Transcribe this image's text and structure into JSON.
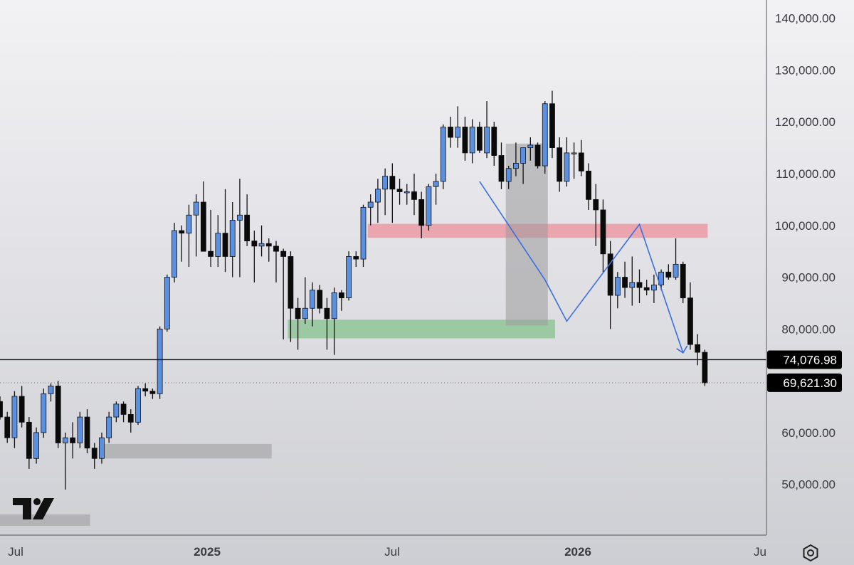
{
  "chart_data": {
    "type": "candlestick",
    "title": "",
    "y_tick_labels": [
      "140,000.00",
      "130,000.00",
      "120,000.00",
      "110,000.00",
      "100,000.00",
      "90,000.00",
      "80,000.00",
      "60,000.00",
      "50,000.00"
    ],
    "y_ticks": [
      140000,
      130000,
      120000,
      110000,
      100000,
      90000,
      80000,
      60000,
      50000
    ],
    "ylim": [
      42000,
      144000
    ],
    "x_tick_labels": [
      "Jul",
      "2025",
      "Jul",
      "2026",
      "Ju"
    ],
    "x_bold": [
      false,
      true,
      false,
      true,
      false
    ],
    "x_positions": [
      "2024-07",
      "2025-01",
      "2025-07",
      "2026-01",
      "2026-07"
    ],
    "horizontal_line_price": 74076.98,
    "price_labels": [
      {
        "text": "74,076.98",
        "price": 74076.98
      },
      {
        "text": "69,621.30",
        "price": 69621.3
      }
    ],
    "candles": [
      [
        66000,
        67000,
        62500,
        63000
      ],
      [
        63000,
        64000,
        58000,
        59000
      ],
      [
        59000,
        68000,
        57000,
        67000
      ],
      [
        67000,
        69000,
        61000,
        62000
      ],
      [
        62000,
        63000,
        53000,
        55000
      ],
      [
        55000,
        61000,
        54000,
        60000
      ],
      [
        60000,
        68500,
        59000,
        67500
      ],
      [
        67500,
        69500,
        66000,
        69000
      ],
      [
        69000,
        70000,
        57000,
        58000
      ],
      [
        58000,
        60000,
        49000,
        59000
      ],
      [
        59000,
        62000,
        55000,
        58000
      ],
      [
        58000,
        64000,
        57000,
        63000
      ],
      [
        63000,
        64500,
        56000,
        57000
      ],
      [
        57000,
        58000,
        53000,
        55000
      ],
      [
        55000,
        60000,
        54000,
        59000
      ],
      [
        59000,
        64000,
        58000,
        63000
      ],
      [
        63000,
        66000,
        62000,
        65500
      ],
      [
        65500,
        66000,
        62000,
        63500
      ],
      [
        63500,
        64500,
        60000,
        62000
      ],
      [
        62000,
        69000,
        61500,
        68500
      ],
      [
        68500,
        69500,
        67000,
        68000
      ],
      [
        68000,
        68500,
        66500,
        67500
      ],
      [
        67500,
        80500,
        66500,
        80000
      ],
      [
        80000,
        90500,
        79500,
        90000
      ],
      [
        90000,
        100500,
        89000,
        99000
      ],
      [
        99000,
        100000,
        93000,
        98500
      ],
      [
        98500,
        104000,
        92000,
        102000
      ],
      [
        102000,
        106000,
        94000,
        104500
      ],
      [
        104500,
        108500,
        96000,
        95000
      ],
      [
        95000,
        103000,
        92000,
        94000
      ],
      [
        94000,
        102000,
        92000,
        98500
      ],
      [
        98500,
        107000,
        91000,
        94000
      ],
      [
        94000,
        104500,
        90000,
        101000
      ],
      [
        101000,
        109000,
        90000,
        102000
      ],
      [
        102000,
        106000,
        96000,
        97000
      ],
      [
        97000,
        99000,
        89000,
        96000
      ],
      [
        96000,
        100000,
        94000,
        96500
      ],
      [
        96500,
        97500,
        93000,
        96000
      ],
      [
        96000,
        97000,
        89000,
        95000
      ],
      [
        95000,
        95500,
        78000,
        94000
      ],
      [
        94000,
        95000,
        77500,
        84000
      ],
      [
        84000,
        86000,
        76000,
        82000
      ],
      [
        82000,
        90000,
        81000,
        84000
      ],
      [
        84000,
        89000,
        80500,
        87500
      ],
      [
        87500,
        88500,
        83000,
        84000
      ],
      [
        84000,
        86000,
        76000,
        82000
      ],
      [
        82000,
        88000,
        75000,
        87000
      ],
      [
        87000,
        87500,
        83500,
        86000
      ],
      [
        86000,
        95000,
        85500,
        94000
      ],
      [
        94000,
        95000,
        92000,
        93500
      ],
      [
        93500,
        104000,
        92000,
        103500
      ],
      [
        103500,
        106000,
        100000,
        104500
      ],
      [
        104500,
        109000,
        100500,
        107000
      ],
      [
        107000,
        111000,
        102000,
        109500
      ],
      [
        109500,
        112000,
        100500,
        107000
      ],
      [
        107000,
        109000,
        104000,
        106500
      ],
      [
        106500,
        108000,
        104000,
        106500
      ],
      [
        106500,
        110000,
        102000,
        105000
      ],
      [
        105000,
        106500,
        97500,
        100000
      ],
      [
        100000,
        108000,
        99000,
        107500
      ],
      [
        107500,
        110000,
        104000,
        108500
      ],
      [
        108500,
        119500,
        107000,
        119000
      ],
      [
        119000,
        121000,
        115000,
        117000
      ],
      [
        117000,
        123000,
        115000,
        119000
      ],
      [
        119000,
        121000,
        112500,
        114000
      ],
      [
        114000,
        120500,
        112000,
        119000
      ],
      [
        119000,
        120000,
        114000,
        114500
      ],
      [
        114000,
        124000,
        113000,
        119000
      ],
      [
        119000,
        120000,
        111500,
        113500
      ],
      [
        113500,
        116000,
        107000,
        108500
      ],
      [
        108500,
        111500,
        107000,
        111000
      ],
      [
        111000,
        116000,
        109500,
        112000
      ],
      [
        112000,
        115000,
        108000,
        115000
      ],
      [
        115000,
        117000,
        112500,
        115500
      ],
      [
        115500,
        116000,
        111000,
        111500
      ],
      [
        111500,
        124000,
        110000,
        123500
      ],
      [
        123500,
        126000,
        113000,
        115000
      ],
      [
        115000,
        117000,
        106500,
        108500
      ],
      [
        108500,
        117000,
        107500,
        114000
      ],
      [
        114000,
        116000,
        109000,
        114000
      ],
      [
        114000,
        116500,
        109500,
        110500
      ],
      [
        110500,
        112000,
        103000,
        105000
      ],
      [
        105000,
        108000,
        96000,
        103000
      ],
      [
        103000,
        105000,
        91000,
        94500
      ],
      [
        94500,
        97000,
        80000,
        86500
      ],
      [
        86500,
        91000,
        84000,
        90000
      ],
      [
        90000,
        93000,
        86000,
        88000
      ],
      [
        88000,
        94000,
        84500,
        89000
      ],
      [
        89000,
        91500,
        85000,
        88000
      ],
      [
        88000,
        89500,
        86500,
        87500
      ],
      [
        87500,
        90500,
        85000,
        88500
      ],
      [
        88500,
        91500,
        87500,
        91000
      ],
      [
        91000,
        92500,
        89500,
        90000
      ],
      [
        90000,
        97500,
        89500,
        92500
      ],
      [
        92500,
        93000,
        85000,
        86000
      ],
      [
        86000,
        89000,
        76000,
        77000
      ],
      [
        77000,
        79000,
        73000,
        75500
      ],
      [
        75500,
        76000,
        69000,
        69600
      ]
    ],
    "zones": [
      {
        "kind": "gray-range",
        "from_index": 14,
        "to_index": 37,
        "price_low": 55000,
        "price_high": 57800
      },
      {
        "kind": "gray-range",
        "from_index": -1,
        "to_index": 12,
        "price_low": 42000,
        "price_high": 44200
      },
      {
        "kind": "demand",
        "from_index": 40,
        "to_index": 76,
        "price_low": 78200,
        "price_high": 81800
      },
      {
        "kind": "supply",
        "from_index": 51,
        "to_index": 97,
        "price_low": 97600,
        "price_high": 100300
      },
      {
        "kind": "gray-range",
        "from_index": 70,
        "to_index": 75,
        "price_low": 80700,
        "price_high": 115800
      }
    ],
    "projection_path": [
      {
        "index": 66,
        "price": 108500
      },
      {
        "index": 75,
        "price": 89500
      },
      {
        "index": 78,
        "price": 81500
      },
      {
        "index": 88,
        "price": 100200
      },
      {
        "index": 94,
        "price": 75400
      }
    ],
    "colors": {
      "bull": "#5b8fe0",
      "bear": "#0a0a0a",
      "wick": "#111111",
      "projection": "#3b6fe0",
      "demand": "#8fc596",
      "supply": "#ec9aa3",
      "gray": "#9a9a9c",
      "axis_line": "#555555",
      "label_bg": "#000000"
    }
  },
  "watermark": "TradingView logo",
  "settings_icon": "hexagon-settings-icon"
}
